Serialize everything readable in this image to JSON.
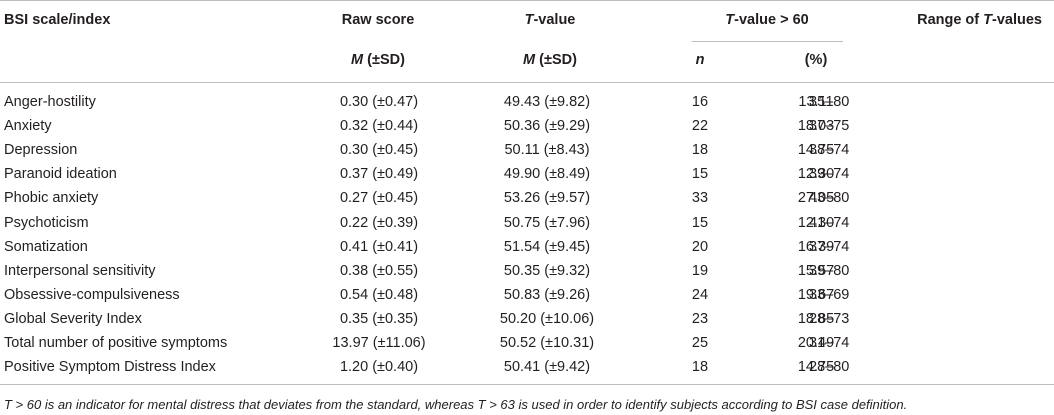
{
  "headers": {
    "scale": "BSI scale/index",
    "raw_score": "Raw score",
    "t_value": {
      "symbol": "T",
      "rest": "-value"
    },
    "t_over_60": {
      "symbol": "T",
      "rest": "-value > 60"
    },
    "range": {
      "prefix": "Range of ",
      "symbol": "T",
      "suffix": "-values"
    }
  },
  "subheaders": {
    "m_symbol": "M",
    "sd_part": " (±SD)",
    "n": "n",
    "percent": "(%)"
  },
  "rows": [
    {
      "name": "Anger-hostility",
      "raw": "0.30 (±0.47)",
      "t": "49.43 (±9.82)",
      "n": "16",
      "pct": "13.11",
      "range": "35–80"
    },
    {
      "name": "Anxiety",
      "raw": "0.32 (±0.44)",
      "t": "50.36 (±9.29)",
      "n": "22",
      "pct": "18.03",
      "range": "37–75"
    },
    {
      "name": "Depression",
      "raw": "0.30 (±0.45)",
      "t": "50.11 (±8.43)",
      "n": "18",
      "pct": "14.75",
      "range": "38–74"
    },
    {
      "name": "Paranoid ideation",
      "raw": "0.37 (±0.49)",
      "t": "49.90 (±8.49)",
      "n": "15",
      "pct": "12.30",
      "range": "39–74"
    },
    {
      "name": "Phobic anxiety",
      "raw": "0.27 (±0.45)",
      "t": "53.26 (±9.57)",
      "n": "33",
      "pct": "27.05",
      "range": "43–80"
    },
    {
      "name": "Psychoticism",
      "raw": "0.22 (±0.39)",
      "t": "50.75 (±7.96)",
      "n": "15",
      "pct": "12.30",
      "range": "41–74"
    },
    {
      "name": "Somatization",
      "raw": "0.41 (±0.41)",
      "t": "51.54 (±9.45)",
      "n": "20",
      "pct": "16.39",
      "range": "37–74"
    },
    {
      "name": "Interpersonal sensitivity",
      "raw": "0.38 (±0.55)",
      "t": "50.35 (±9.32)",
      "n": "19",
      "pct": "15.57",
      "range": "39–80"
    },
    {
      "name": "Obsessive-compulsiveness",
      "raw": "0.54 (±0.48)",
      "t": "50.83 (±9.26)",
      "n": "24",
      "pct": "19.67",
      "range": "33–69"
    },
    {
      "name": "Global Severity Index",
      "raw": "0.35 (±0.35)",
      "t": "50.20 (±10.06)",
      "n": "23",
      "pct": "18.85",
      "range": "28–73"
    },
    {
      "name": "Total number of positive symptoms",
      "raw": "13.97 (±11.06)",
      "t": "50.52 (±10.31)",
      "n": "25",
      "pct": "20.49",
      "range": "31–74"
    },
    {
      "name": "Positive Symptom Distress Index",
      "raw": "1.20 (±0.40)",
      "t": "50.41 (±9.42)",
      "n": "18",
      "pct": "14.75",
      "range": "28–80"
    }
  ],
  "footnote": "T > 60 is an indicator for mental distress that deviates from the standard, whereas T > 63 is used in order to identify subjects according to BSI case definition."
}
